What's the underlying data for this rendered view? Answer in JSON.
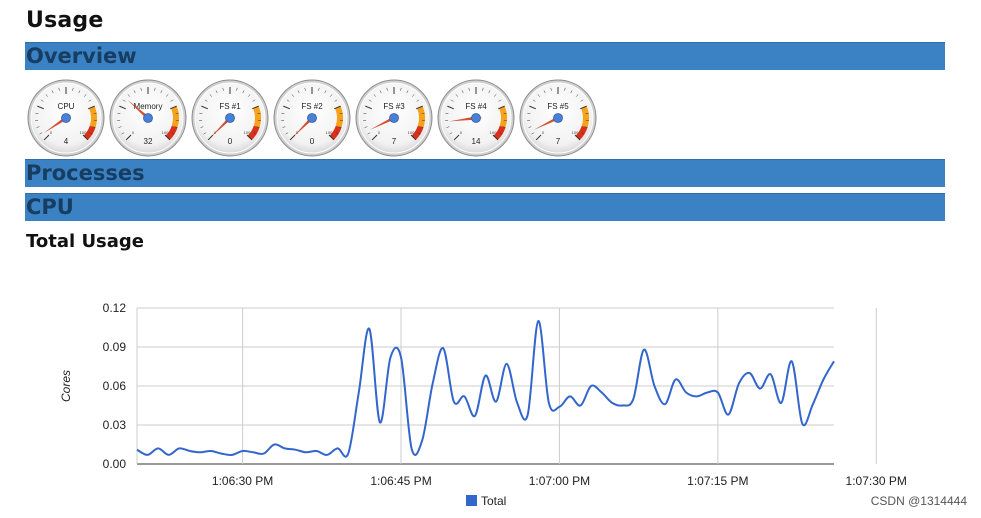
{
  "page": {
    "title": "Usage"
  },
  "sections": {
    "overview": "Overview",
    "processes": "Processes",
    "cpu": "CPU"
  },
  "gauges": [
    {
      "label": "CPU",
      "value": 4
    },
    {
      "label": "Memory",
      "value": 32
    },
    {
      "label": "FS #1",
      "value": 0
    },
    {
      "label": "FS #2",
      "value": 0
    },
    {
      "label": "FS #3",
      "value": 7
    },
    {
      "label": "FS #4",
      "value": 14
    },
    {
      "label": "FS #5",
      "value": 7
    }
  ],
  "gauge_scale": {
    "min_label": "0",
    "max_label": "100"
  },
  "cpu_panel": {
    "subtitle": "Total Usage"
  },
  "chart_data": {
    "type": "line",
    "title": "",
    "xlabel": "",
    "ylabel": "Cores",
    "ylim": [
      0,
      0.12
    ],
    "y_ticks": [
      "0.00",
      "0.03",
      "0.06",
      "0.09",
      "0.12"
    ],
    "x_ticks": [
      "1:06:30 PM",
      "1:06:45 PM",
      "1:07:00 PM",
      "1:07:15 PM",
      "1:07:30 PM"
    ],
    "legend": "bottom",
    "grid": true,
    "series": [
      {
        "name": "Total",
        "color": "#3366cc",
        "points": [
          [
            "1:06:20 PM",
            0.011
          ],
          [
            "1:06:21 PM",
            0.007
          ],
          [
            "1:06:22 PM",
            0.012
          ],
          [
            "1:06:23 PM",
            0.007
          ],
          [
            "1:06:24 PM",
            0.012
          ],
          [
            "1:06:25 PM",
            0.01
          ],
          [
            "1:06:26 PM",
            0.009
          ],
          [
            "1:06:27 PM",
            0.01
          ],
          [
            "1:06:28 PM",
            0.008
          ],
          [
            "1:06:29 PM",
            0.007
          ],
          [
            "1:06:30 PM",
            0.01
          ],
          [
            "1:06:31 PM",
            0.009
          ],
          [
            "1:06:32 PM",
            0.008
          ],
          [
            "1:06:33 PM",
            0.015
          ],
          [
            "1:06:34 PM",
            0.012
          ],
          [
            "1:06:35 PM",
            0.011
          ],
          [
            "1:06:36 PM",
            0.009
          ],
          [
            "1:06:37 PM",
            0.01
          ],
          [
            "1:06:38 PM",
            0.007
          ],
          [
            "1:06:39 PM",
            0.012
          ],
          [
            "1:06:40 PM",
            0.008
          ],
          [
            "1:06:41 PM",
            0.055
          ],
          [
            "1:06:42 PM",
            0.104
          ],
          [
            "1:06:43 PM",
            0.032
          ],
          [
            "1:06:44 PM",
            0.082
          ],
          [
            "1:06:45 PM",
            0.082
          ],
          [
            "1:06:46 PM",
            0.012
          ],
          [
            "1:06:47 PM",
            0.018
          ],
          [
            "1:06:48 PM",
            0.062
          ],
          [
            "1:06:49 PM",
            0.089
          ],
          [
            "1:06:50 PM",
            0.048
          ],
          [
            "1:06:51 PM",
            0.052
          ],
          [
            "1:06:52 PM",
            0.037
          ],
          [
            "1:06:53 PM",
            0.068
          ],
          [
            "1:06:54 PM",
            0.048
          ],
          [
            "1:06:55 PM",
            0.077
          ],
          [
            "1:06:56 PM",
            0.047
          ],
          [
            "1:06:57 PM",
            0.038
          ],
          [
            "1:06:58 PM",
            0.11
          ],
          [
            "1:06:59 PM",
            0.047
          ],
          [
            "1:07:00 PM",
            0.044
          ],
          [
            "1:07:01 PM",
            0.052
          ],
          [
            "1:07:02 PM",
            0.045
          ],
          [
            "1:07:03 PM",
            0.06
          ],
          [
            "1:07:04 PM",
            0.055
          ],
          [
            "1:07:05 PM",
            0.047
          ],
          [
            "1:07:06 PM",
            0.045
          ],
          [
            "1:07:07 PM",
            0.05
          ],
          [
            "1:07:08 PM",
            0.088
          ],
          [
            "1:07:09 PM",
            0.06
          ],
          [
            "1:07:10 PM",
            0.046
          ],
          [
            "1:07:11 PM",
            0.065
          ],
          [
            "1:07:12 PM",
            0.055
          ],
          [
            "1:07:13 PM",
            0.052
          ],
          [
            "1:07:14 PM",
            0.055
          ],
          [
            "1:07:15 PM",
            0.055
          ],
          [
            "1:07:16 PM",
            0.038
          ],
          [
            "1:07:17 PM",
            0.062
          ],
          [
            "1:07:18 PM",
            0.07
          ],
          [
            "1:07:19 PM",
            0.058
          ],
          [
            "1:07:20 PM",
            0.069
          ],
          [
            "1:07:21 PM",
            0.047
          ],
          [
            "1:07:22 PM",
            0.079
          ],
          [
            "1:07:23 PM",
            0.031
          ],
          [
            "1:07:24 PM",
            0.046
          ],
          [
            "1:07:25 PM",
            0.065
          ],
          [
            "1:07:26 PM",
            0.079
          ]
        ]
      }
    ]
  },
  "watermark": "CSDN @1314444"
}
